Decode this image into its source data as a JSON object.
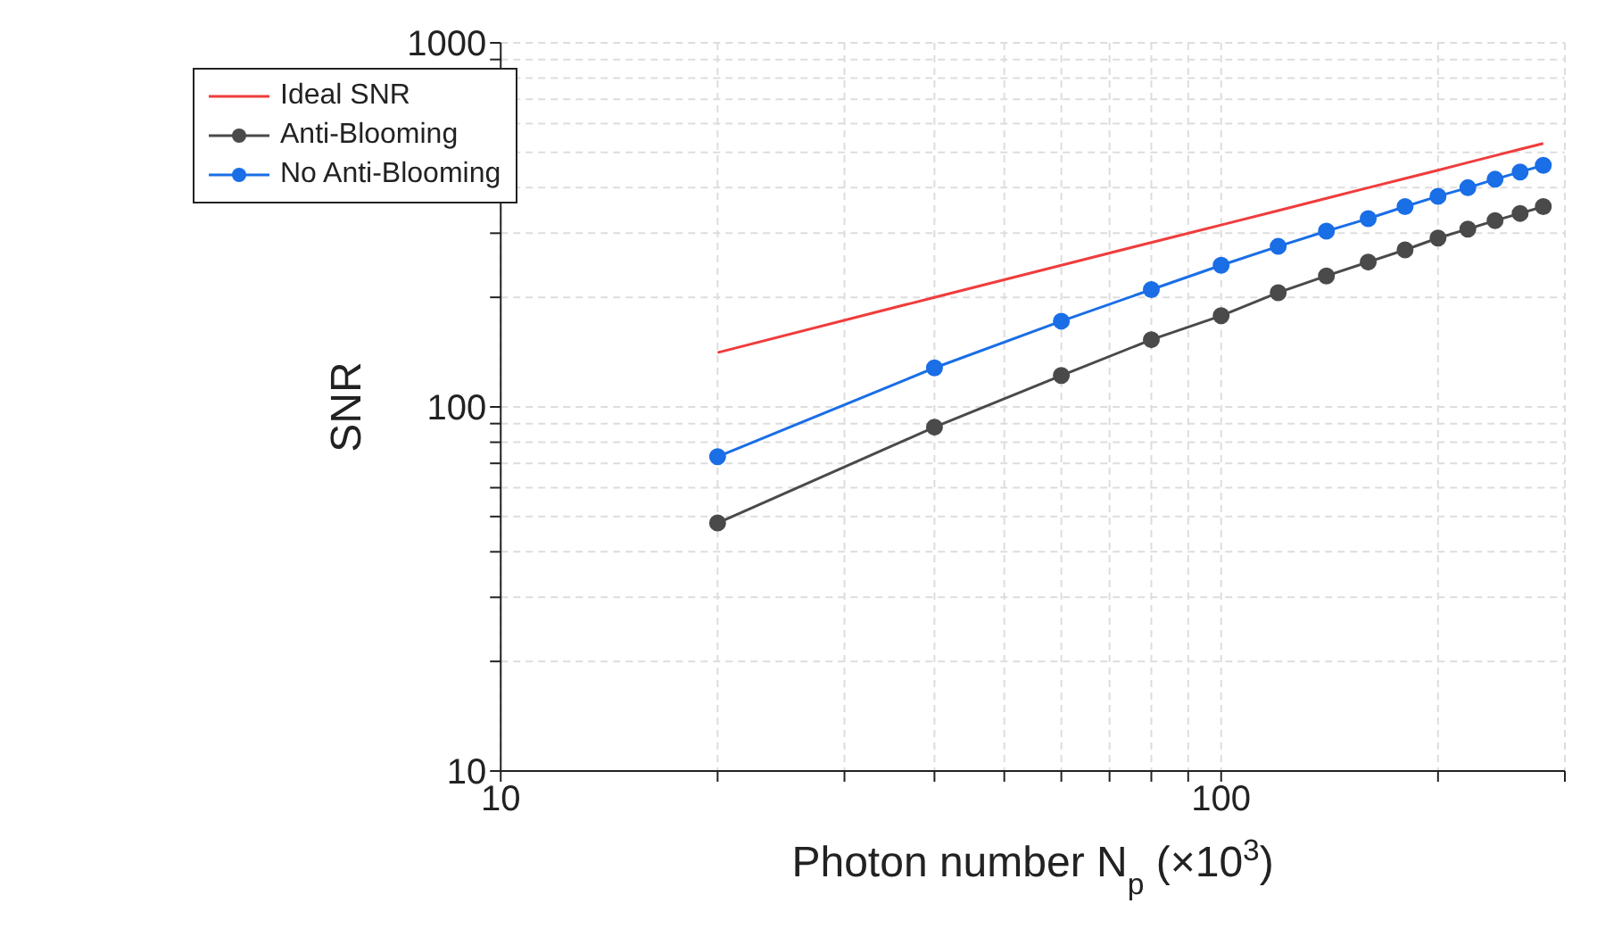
{
  "chart_data": {
    "type": "line",
    "xlabel": "Photon number N$_{p}$ (×10$^{3}$)",
    "ylabel": "SNR",
    "log": "xy",
    "grid": true,
    "legend": "top left",
    "x": [
      20,
      40,
      60,
      80,
      100,
      120,
      140,
      160,
      180,
      200,
      220,
      240,
      260,
      280
    ],
    "xlim": [
      10,
      300
    ],
    "xticks": [
      10,
      {
        "value": 20,
        "label": null
      },
      {
        "value": 30,
        "label": null
      },
      {
        "value": 40,
        "label": null
      },
      {
        "value": 50,
        "label": null
      },
      {
        "value": 60,
        "label": null
      },
      {
        "value": 70,
        "label": null
      },
      {
        "value": 80,
        "label": null
      },
      {
        "value": 90,
        "label": null
      },
      100,
      {
        "value": 200,
        "label": null
      },
      {
        "value": 300,
        "label": null
      }
    ],
    "ylim": [
      10,
      1000
    ],
    "yticks": [
      10,
      {
        "value": 20,
        "label": null
      },
      {
        "value": 30,
        "label": null
      },
      {
        "value": 40,
        "label": null
      },
      {
        "value": 50,
        "label": null
      },
      {
        "value": 60,
        "label": null
      },
      {
        "value": 70,
        "label": null
      },
      {
        "value": 80,
        "label": null
      },
      {
        "value": 90,
        "label": null
      },
      100,
      {
        "value": 200,
        "label": null
      },
      {
        "value": 300,
        "label": null
      },
      {
        "value": 400,
        "label": null
      },
      {
        "value": 500,
        "label": null
      },
      {
        "value": 600,
        "label": null
      },
      {
        "value": 700,
        "label": null
      },
      {
        "value": 800,
        "label": null
      },
      {
        "value": 900,
        "label": null
      },
      1000
    ],
    "series": [
      {
        "name": "Ideal SNR",
        "color": "#f03c3c",
        "marker": "none",
        "values": [
          141,
          200,
          245,
          283,
          316,
          346,
          374,
          400,
          424,
          447,
          469,
          490,
          510,
          529
        ]
      },
      {
        "name": "Anti-Blooming",
        "color": "#4a4a4a",
        "marker": "circle",
        "values": [
          48,
          88,
          122,
          153,
          178,
          206,
          229,
          250,
          270,
          291,
          308,
          325,
          340,
          355
        ]
      },
      {
        "name": "No Anti-Blooming",
        "color": "#1a6ee6",
        "marker": "circle",
        "values": [
          73,
          128,
          172,
          210,
          245,
          276,
          304,
          329,
          355,
          379,
          400,
          422,
          442,
          461
        ]
      }
    ]
  }
}
